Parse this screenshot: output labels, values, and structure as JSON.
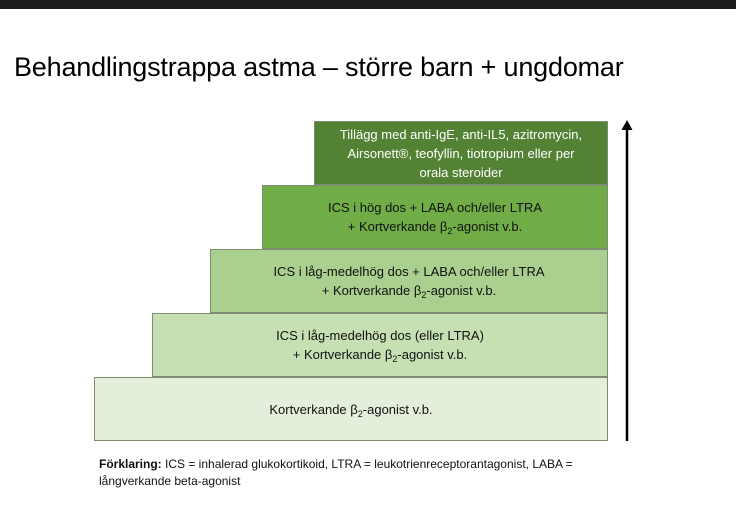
{
  "title": "Behandlingstrappa astma – större barn + ungdomar",
  "steps": [
    {
      "parts": [
        "Kortverkande β",
        "2",
        "-agonist v.b."
      ]
    },
    {
      "line1": "ICS i låg-medelhög dos (eller LTRA)",
      "line2_parts": [
        "+ Kortverkande β",
        "2",
        "-agonist v.b."
      ]
    },
    {
      "line1": "ICS i låg-medelhög dos + LABA och/eller LTRA",
      "line2_parts": [
        "+ Kortverkande β",
        "2",
        "-agonist v.b."
      ]
    },
    {
      "line1": "ICS i hög dos + LABA och/eller LTRA",
      "line2_parts": [
        "+ Kortverkande β",
        "2",
        "-agonist v.b."
      ]
    },
    {
      "lines": [
        "Tillägg med anti-IgE, anti-IL5, azitromycin,",
        "Airsonett®, teofyllin, tiotropium eller per",
        "orala steroider"
      ]
    }
  ],
  "legend": {
    "label": "Förklaring:",
    "text": " ICS = inhalerad glukokortikoid, LTRA = leukotrienreceptorantagonist, LABA = långverkande beta-agonist"
  },
  "colors": {
    "step1": "#e3efda",
    "step2": "#c6e0b4",
    "step3": "#a9d08e",
    "step4": "#70ad47",
    "step5": "#548235",
    "arrow": "#000000"
  },
  "icons": {
    "arrow": "arrow-up-icon"
  }
}
